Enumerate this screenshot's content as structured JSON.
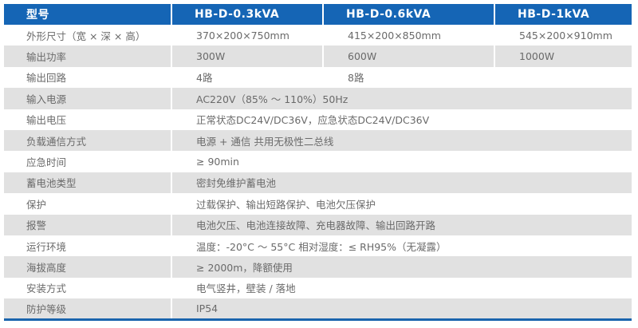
{
  "header": [
    "型号",
    "HB-D-0.3kVA",
    "HB-D-0.6kVA",
    "HB-D-1kVA"
  ],
  "rows": [
    {
      "label": "外形尺寸（宽 × 深 × 高）",
      "values": [
        "370×200×750mm",
        "415×200×850mm",
        "545×200×910mm"
      ]
    },
    {
      "label": "输出功率",
      "values": [
        "300W",
        "600W",
        "1000W"
      ]
    },
    {
      "label": "输出回路",
      "values": [
        "4路",
        "8路"
      ]
    },
    {
      "label": "输入电源",
      "values": [
        "AC220V（85% ～ 110%）50Hz"
      ]
    },
    {
      "label": "输出电压",
      "values": [
        "正常状态DC24V/DC36V，应急状态DC24V/DC36V"
      ]
    },
    {
      "label": "负载通信方式",
      "values": [
        "电源 + 通信  共用无极性二总线"
      ]
    },
    {
      "label": "应急时间",
      "values": [
        "≥ 90min"
      ]
    },
    {
      "label": "蓄电池类型",
      "values": [
        "密封免维护蓄电池"
      ]
    },
    {
      "label": "保护",
      "values": [
        "过载保护、输出短路保护、电池欠压保护"
      ]
    },
    {
      "label": "报警",
      "values": [
        "电池欠压、电池连接故障、充电器故障、输出回路开路"
      ]
    },
    {
      "label": "运行环境",
      "values": [
        "温度：-20°C ～ 55°C  相对湿度：≤ RH95%（无凝露）"
      ]
    },
    {
      "label": "海拔高度",
      "values": [
        "≥ 2000m，降额使用"
      ]
    },
    {
      "label": "安装方式",
      "values": [
        "电气竖井，壁装 / 落地"
      ]
    },
    {
      "label": "防护等级",
      "values": [
        "IP54"
      ]
    }
  ],
  "colors": {
    "header": "#1565b5",
    "stripe": "#e1e1e1",
    "text": "#6a6a6a"
  }
}
